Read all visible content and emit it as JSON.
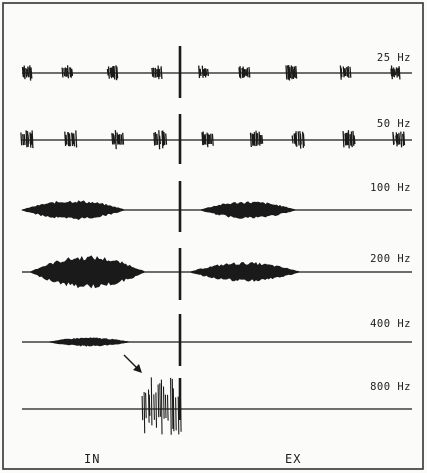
{
  "colors": {
    "ink": "#1a1a1a",
    "paper": "#fbfbf9",
    "frame": "#333333"
  },
  "traces": [
    {
      "label": "25 Hz",
      "pattern": "bursts",
      "bursts_in": 4,
      "bursts_ex": 5
    },
    {
      "label": "50 Hz",
      "pattern": "bursts",
      "bursts_in": 4,
      "bursts_ex": 5
    },
    {
      "label": "100 Hz",
      "pattern": "envelope"
    },
    {
      "label": "200 Hz",
      "pattern": "envelope"
    },
    {
      "label": "400 Hz",
      "pattern": "envelope_in_only"
    },
    {
      "label": "800 Hz",
      "pattern": "spikes_at_transition"
    }
  ],
  "phase_labels": {
    "inspiration": "IN",
    "expiration": "EX"
  },
  "annotation": {
    "arrow": "arrow-icon"
  }
}
